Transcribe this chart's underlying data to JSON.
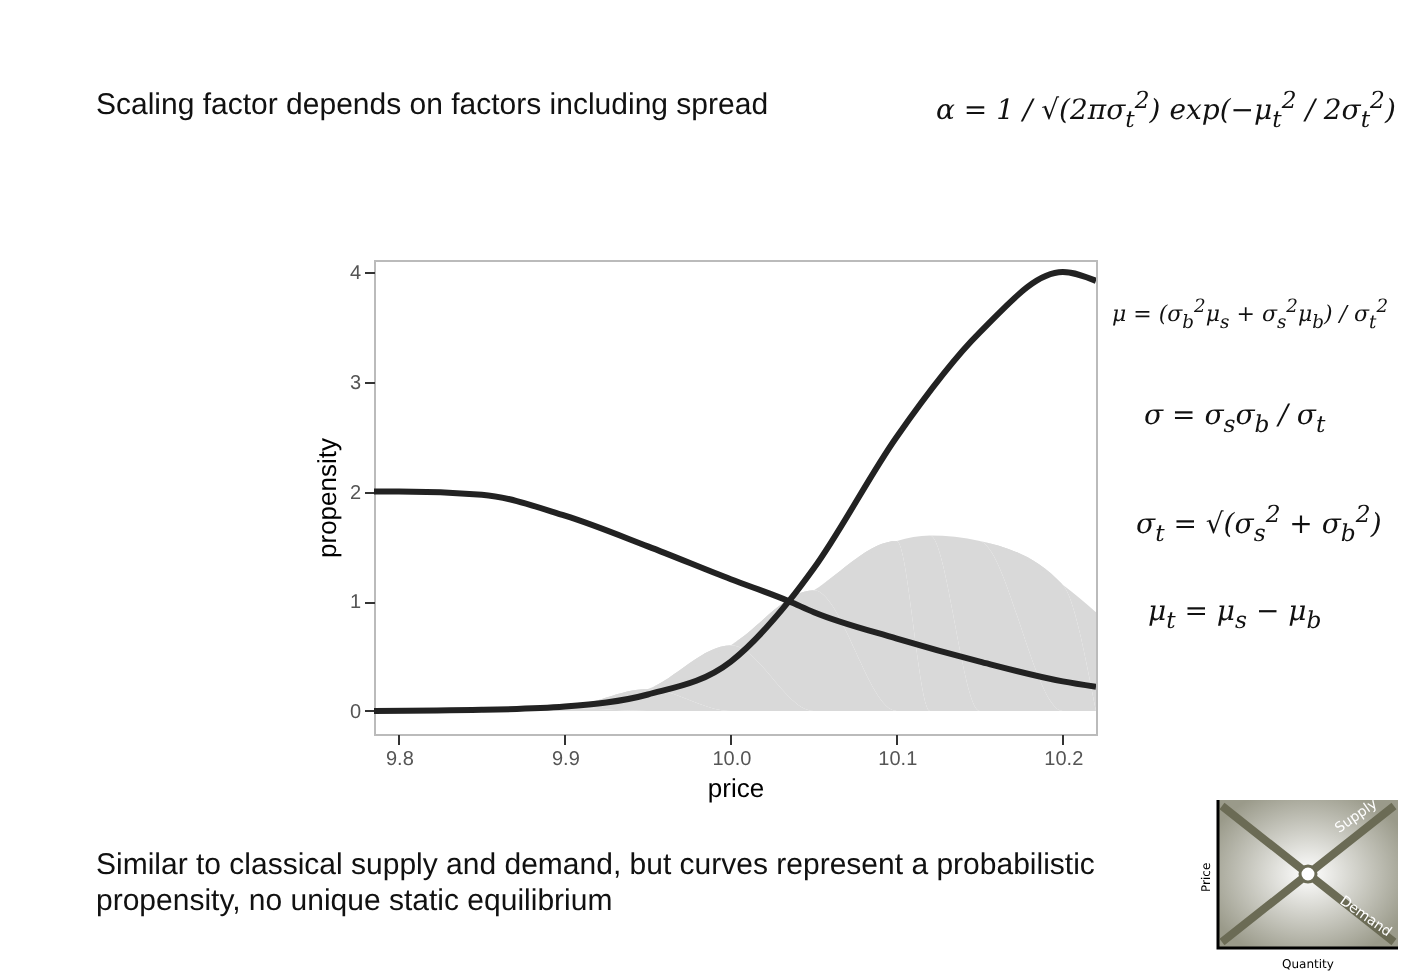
{
  "chart_data": {
    "type": "line",
    "xlabel": "price",
    "ylabel": "propensity",
    "xlim": [
      9.785,
      10.22
    ],
    "ylim": [
      -0.21,
      4.11
    ],
    "xticks": [
      {
        "value": 9.8,
        "label": "9.8"
      },
      {
        "value": 9.9,
        "label": "9.9"
      },
      {
        "value": 10.0,
        "label": "10.0"
      },
      {
        "value": 10.1,
        "label": "10.1"
      },
      {
        "value": 10.2,
        "label": "10.2"
      }
    ],
    "yticks": [
      0,
      1,
      2,
      3,
      4
    ],
    "grid": false,
    "series": [
      {
        "type": "area",
        "color": "#d9d9d9",
        "x": [
          9.785,
          9.85,
          9.9,
          9.95,
          10.0,
          10.05,
          10.1,
          10.12,
          10.15,
          10.2,
          10.22
        ],
        "values": [
          0,
          0,
          0.03,
          0.2,
          0.6,
          1.1,
          1.55,
          1.6,
          1.55,
          1.15,
          0.9
        ]
      },
      {
        "type": "line",
        "color": "#222222",
        "x": [
          9.785,
          9.8,
          9.85,
          9.9,
          9.95,
          10.0,
          10.035,
          10.05,
          10.1,
          10.15,
          10.2,
          10.22
        ],
        "values": [
          2.0,
          2.0,
          1.97,
          1.78,
          1.5,
          1.2,
          1.0,
          0.9,
          0.66,
          0.45,
          0.27,
          0.22
        ]
      },
      {
        "type": "line",
        "color": "#222222",
        "x": [
          9.785,
          9.85,
          9.9,
          9.95,
          10.0,
          10.035,
          10.05,
          10.1,
          10.15,
          10.2,
          10.22
        ],
        "values": [
          0,
          0.01,
          0.04,
          0.15,
          0.45,
          1.0,
          1.3,
          2.5,
          3.45,
          4.0,
          3.92
        ]
      }
    ],
    "annotations": [
      "Scaling factor depends on factors including spread",
      "α = 1 / √(2πσ$_{t}$$^{2}$) exp(−μ$_{t}$$^{2}$ / 2σ$_{t}$$^{2}$)",
      "μ = (σ$_{b}$$^{2}$μ$_{s}$ + σ$_{s}$$^{2}$μ$_{b}$) / σ$_{t}$$^{2}$",
      "σ = σ$_{s}$σ$_{b}$ / σ$_{t}$",
      "σ$_{t}$ = √(σ$_{s}$$^{2}$ + σ$_{b}$$^{2}$)",
      "μ$_{t}$ = μ$_{s}$ − μ$_{b}$",
      "Similar to classical supply and demand, but curves represent a probabilistic propensity, no unique static equilibrium",
      "Supply",
      "Demand",
      "Price",
      "Quantity"
    ]
  }
}
